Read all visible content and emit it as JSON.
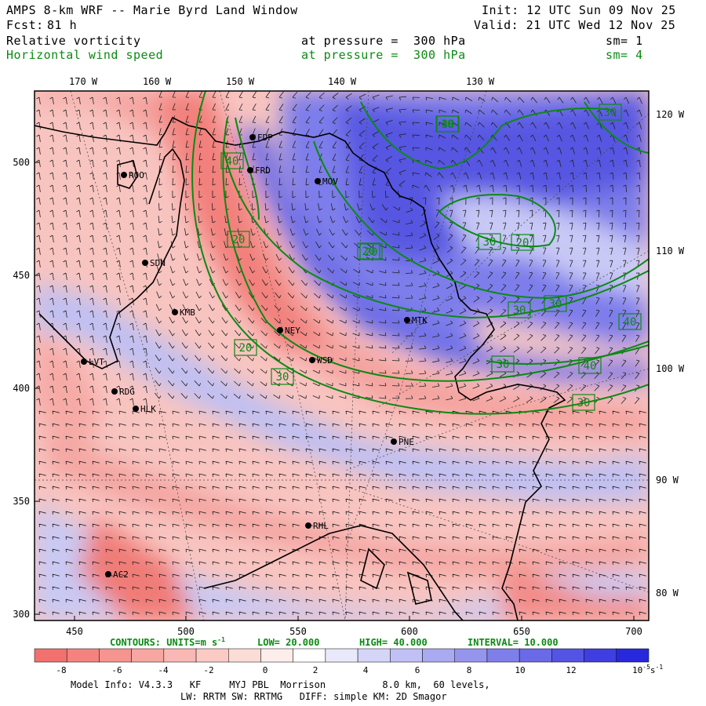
{
  "header": {
    "title": "AMPS 8-km WRF -- Marie Byrd Land Window",
    "forecast_label": "Fcst:",
    "forecast_hours": "81 h",
    "init": "Init: 12 UTC Sun 09 Nov 25",
    "valid": "Valid: 21 UTC Wed 12 Nov 25",
    "field1": {
      "name": "Relative vorticity",
      "pressure": "at pressure =  300 hPa",
      "smoothing": "sm= 1",
      "color": "#000000"
    },
    "field2": {
      "name": "Horizontal wind speed",
      "pressure": "at pressure =  300 hPa",
      "smoothing": "sm= 4",
      "color": "#0b8a12"
    }
  },
  "axes": {
    "top_longitudes": [
      "170 W",
      "160 W",
      "150 W",
      "140 W",
      "130 W"
    ],
    "right_longitudes": [
      "120 W",
      "110 W",
      "100 W",
      "90 W",
      "80 W"
    ],
    "left_ticks": [
      "500",
      "450",
      "400",
      "350",
      "300"
    ],
    "bottom_ticks": [
      "450",
      "500",
      "550",
      "600",
      "650",
      "700"
    ]
  },
  "stations": [
    {
      "code": "ROO"
    },
    {
      "code": "FDP"
    },
    {
      "code": "FRD"
    },
    {
      "code": "MOV"
    },
    {
      "code": "SDN"
    },
    {
      "code": "KMB"
    },
    {
      "code": "NEY"
    },
    {
      "code": "MTK"
    },
    {
      "code": "WSD"
    },
    {
      "code": "LVT"
    },
    {
      "code": "RDG"
    },
    {
      "code": "HLK"
    },
    {
      "code": "PNE"
    },
    {
      "code": "RHL"
    },
    {
      "code": "AC2"
    }
  ],
  "contour_labels": [
    "30",
    "40",
    "30",
    "20",
    "20",
    "30",
    "30",
    "20",
    "20",
    "30",
    "30",
    "40",
    "30",
    "40",
    "30",
    "40",
    "20"
  ],
  "contours_info": {
    "units": "CONTOURS:  UNITS=m s",
    "units_exp": "-1",
    "low": "LOW=  20.000",
    "high": "HIGH=  40.000",
    "interval": "INTERVAL=   10.000"
  },
  "colorbar": {
    "labels": [
      "-8",
      "-6",
      "-4",
      "-2",
      "0",
      "2",
      "4",
      "6",
      "8",
      "10",
      "12"
    ],
    "units": "10",
    "units_exp": "-5",
    "units_suffix": "s",
    "units_suffix_exp": "-1",
    "colors": [
      "#f2716f",
      "#f4837f",
      "#f69490",
      "#f7a6a1",
      "#f9b8b3",
      "#fbcac5",
      "#fcdcd7",
      "#feeeeb",
      "#ffffff",
      "#e9e9fb",
      "#d5d5f8",
      "#c0c0f5",
      "#aaaaf2",
      "#9595ee",
      "#7f7feb",
      "#6a6ae8",
      "#5454e4",
      "#3e3ee1",
      "#2828dd"
    ]
  },
  "footer": {
    "line1": "Model Info: V4.3.3   KF     MYJ PBL  Morrison          8.0 km,  60 levels,",
    "line2": "LW: RRTM SW: RRTMG   DIFF: simple KM: 2D Smagor"
  }
}
